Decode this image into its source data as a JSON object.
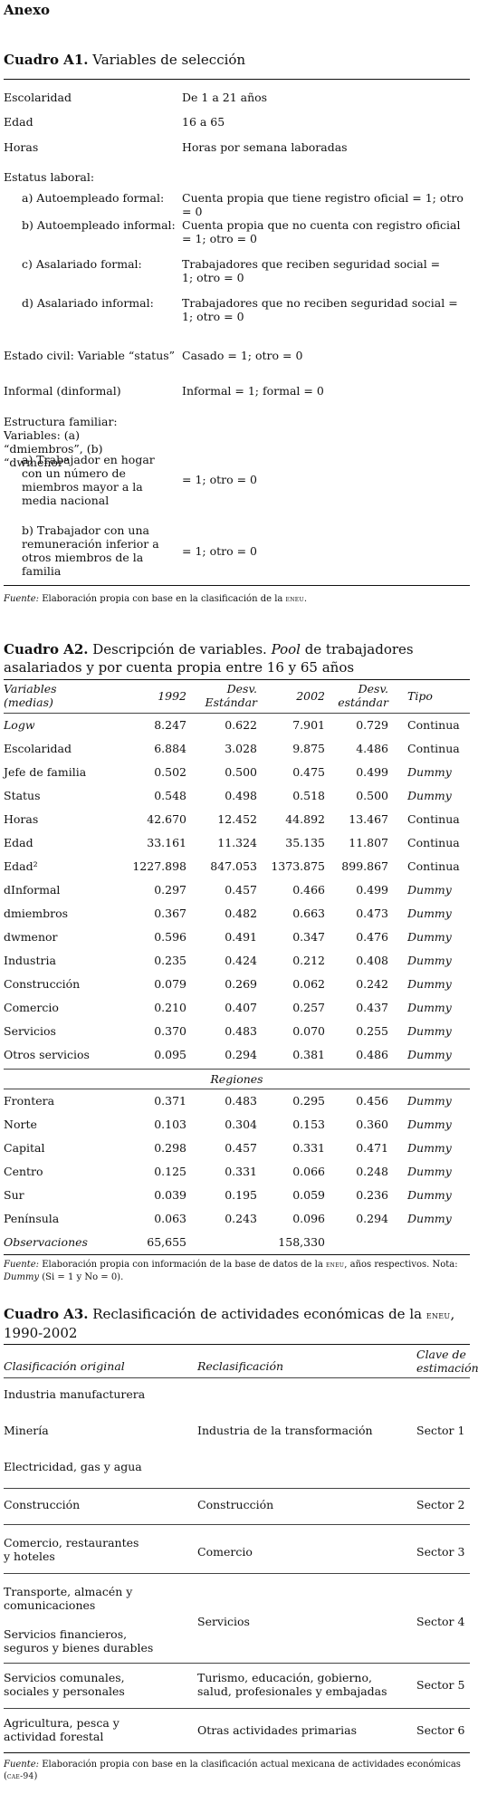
{
  "annex_title": "Anexo",
  "a1": {
    "title_bold": "Cuadro A1.",
    "title_rest": " Variables de selección",
    "rows": [
      {
        "label": "Escolaridad",
        "value": "De 1 a 21 años"
      },
      {
        "label": "Edad",
        "value": "16 a 65"
      },
      {
        "label": "Horas",
        "value": "Horas por semana laboradas"
      },
      {
        "label": "Estatus laboral:",
        "value": ""
      },
      {
        "label": "a) Autoempleado formal:",
        "value": "Cuenta propia que tiene registro oficial = 1; otro = 0"
      },
      {
        "label": "b) Autoempleado informal:",
        "value": "Cuenta propia que no cuenta con registro oficial = 1; otro = 0"
      },
      {
        "label": "c) Asalariado formal:",
        "value": "Trabajadores que reciben seguridad social = 1; otro = 0"
      },
      {
        "label": "d) Asalariado informal:",
        "value": "Trabajadores que no reciben seguridad social = 1; otro = 0"
      },
      {
        "label": "Estado civil: Variable “status”",
        "value": "Casado = 1; otro = 0"
      },
      {
        "label": "Informal (dinformal)",
        "value": "Informal = 1; formal = 0"
      },
      {
        "label": "Estructura familiar: Variables: (a) “dmiembros”, (b) “dwmenor”",
        "value": ""
      },
      {
        "label": "a) Trabajador en hogar con un número de miembros mayor a la media nacional",
        "value": "= 1; otro = 0"
      },
      {
        "label": "b) Trabajador con una remuneración inferior a otros miembros de la familia",
        "value": "= 1; otro = 0"
      }
    ],
    "note_label": "Fuente:",
    "note_text": " Elaboración propia con base en la clasificación de la ",
    "note_acronym": "eneu",
    "note_end": "."
  },
  "a2": {
    "title_bold": "Cuadro A2.",
    "title_rest_1": " Descripción de variables. ",
    "title_italic": "Pool",
    "title_rest_2": " de trabajadores asalariados y por cuenta propia entre 16 y 65 años",
    "headers": [
      "Variables (medias)",
      "1992",
      "Desv. Estándar",
      "2002",
      "Desv. estándar",
      "Tipo"
    ],
    "rows": [
      {
        "var": "Logw",
        "italic": true,
        "v1992": "8.247",
        "d1992": "0.622",
        "v2002": "7.901",
        "d2002": "0.729",
        "tipo": "Continua"
      },
      {
        "var": "Escolaridad",
        "v1992": "6.884",
        "d1992": "3.028",
        "v2002": "9.875",
        "d2002": "4.486",
        "tipo": "Continua"
      },
      {
        "var": "Jefe de familia",
        "v1992": "0.502",
        "d1992": "0.500",
        "v2002": "0.475",
        "d2002": "0.499",
        "tipo": "Dummy"
      },
      {
        "var": "Status",
        "v1992": "0.548",
        "d1992": "0.498",
        "v2002": "0.518",
        "d2002": "0.500",
        "tipo": "Dummy"
      },
      {
        "var": "Horas",
        "v1992": "42.670",
        "d1992": "12.452",
        "v2002": "44.892",
        "d2002": "13.467",
        "tipo": "Continua"
      },
      {
        "var": "Edad",
        "v1992": "33.161",
        "d1992": "11.324",
        "v2002": "35.135",
        "d2002": "11.807",
        "tipo": "Continua"
      },
      {
        "var": "Edad²",
        "v1992": "1227.898",
        "d1992": "847.053",
        "v2002": "1373.875",
        "d2002": "899.867",
        "tipo": "Continua"
      },
      {
        "var": "dInformal",
        "v1992": "0.297",
        "d1992": "0.457",
        "v2002": "0.466",
        "d2002": "0.499",
        "tipo": "Dummy"
      },
      {
        "var": "dmiembros",
        "v1992": "0.367",
        "d1992": "0.482",
        "v2002": "0.663",
        "d2002": "0.473",
        "tipo": "Dummy"
      },
      {
        "var": "dwmenor",
        "v1992": "0.596",
        "d1992": "0.491",
        "v2002": "0.347",
        "d2002": "0.476",
        "tipo": "Dummy"
      },
      {
        "var": "Industria",
        "v1992": "0.235",
        "d1992": "0.424",
        "v2002": "0.212",
        "d2002": "0.408",
        "tipo": "Dummy"
      },
      {
        "var": "Construcción",
        "v1992": "0.079",
        "d1992": "0.269",
        "v2002": "0.062",
        "d2002": "0.242",
        "tipo": "Dummy"
      },
      {
        "var": "Comercio",
        "v1992": "0.210",
        "d1992": "0.407",
        "v2002": "0.257",
        "d2002": "0.437",
        "tipo": "Dummy"
      },
      {
        "var": "Servicios",
        "v1992": "0.370",
        "d1992": "0.483",
        "v2002": "0.070",
        "d2002": "0.255",
        "tipo": "Dummy"
      },
      {
        "var": "Otros servicios",
        "v1992": "0.095",
        "d1992": "0.294",
        "v2002": "0.381",
        "d2002": "0.486",
        "tipo": "Dummy"
      }
    ],
    "regions_label": "Regiones",
    "region_rows": [
      {
        "var": "Frontera",
        "v1992": "0.371",
        "d1992": "0.483",
        "v2002": "0.295",
        "d2002": "0.456",
        "tipo": "Dummy"
      },
      {
        "var": "Norte",
        "v1992": "0.103",
        "d1992": "0.304",
        "v2002": "0.153",
        "d2002": "0.360",
        "tipo": "Dummy"
      },
      {
        "var": "Capital",
        "v1992": "0.298",
        "d1992": "0.457",
        "v2002": "0.331",
        "d2002": "0.471",
        "tipo": "Dummy"
      },
      {
        "var": "Centro",
        "v1992": "0.125",
        "d1992": "0.331",
        "v2002": "0.066",
        "d2002": "0.248",
        "tipo": "Dummy"
      },
      {
        "var": "Sur",
        "v1992": "0.039",
        "d1992": "0.195",
        "v2002": "0.059",
        "d2002": "0.236",
        "tipo": "Dummy"
      },
      {
        "var": "Península",
        "v1992": "0.063",
        "d1992": "0.243",
        "v2002": "0.096",
        "d2002": "0.294",
        "tipo": "Dummy"
      }
    ],
    "obs": {
      "label": "Observaciones",
      "v1992": "65,655",
      "v2002": "158,330"
    },
    "note_label": "Fuente:",
    "note_text_1": " Elaboración propia con información de la base de datos de la ",
    "note_acronym": "eneu",
    "note_text_2": ", años respectivos. Nota: ",
    "note_italic": "Dummy",
    "note_text_3": " (Si = 1 y No = 0)."
  },
  "a3": {
    "title_bold": "Cuadro A3.",
    "title_rest": " Reclasificación de actividades económicas de la ",
    "title_acronym": "eneu",
    "title_end": ", 1990-2002",
    "headers": [
      "Clasificación original",
      "Reclasificación",
      "Clave de estimación"
    ],
    "groups": [
      {
        "originals": [
          "Industria manufacturera",
          "Minería",
          "Electricidad, gas y agua"
        ],
        "reclass": "Industria de la transformación",
        "key": "Sector 1"
      },
      {
        "originals": [
          "Construcción"
        ],
        "reclass": "Construcción",
        "key": "Sector 2"
      },
      {
        "originals": [
          "Comercio, restaurantes y hoteles"
        ],
        "reclass": "Comercio",
        "key": "Sector 3"
      },
      {
        "originals": [
          "Transporte, almacén y comunicaciones",
          "Servicios financieros, seguros y bienes durables"
        ],
        "reclass": "Servicios",
        "key": "Sector 4"
      },
      {
        "originals": [
          "Servicios comunales, sociales y personales"
        ],
        "reclass": "Turismo, educación, gobierno, salud, profesionales y embajadas",
        "key": "Sector 5"
      },
      {
        "originals": [
          "Agricultura, pesca y actividad forestal"
        ],
        "reclass": "Otras actividades primarias",
        "key": "Sector 6"
      }
    ],
    "note_label": "Fuente:",
    "note_text": " Elaboración propia con base en la clasificación actual mexicana de actividades económicas (",
    "note_acronym": "cae-94",
    "note_end": ")"
  }
}
